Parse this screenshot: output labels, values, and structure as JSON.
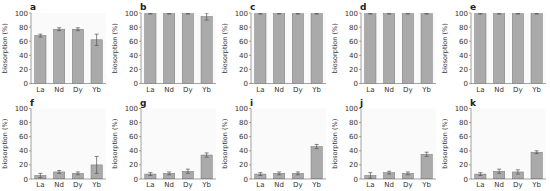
{
  "chart_data": [
    {
      "type": "bar",
      "title": "a",
      "ylabel": "biosorption (%)",
      "categories": [
        "La",
        "Nd",
        "Dy",
        "Yb"
      ],
      "values": [
        68,
        77,
        77,
        62
      ],
      "errors": [
        2,
        2,
        2,
        8
      ],
      "color": "#aaaaaa",
      "ylim": [
        0,
        100
      ],
      "yticks": [
        0,
        20,
        40,
        60,
        80,
        100
      ],
      "grid": false
    },
    {
      "type": "bar",
      "title": "b",
      "ylabel": "biosorption (%)",
      "categories": [
        "La",
        "Nd",
        "Dy",
        "Yb"
      ],
      "values": [
        99,
        99,
        99,
        95
      ],
      "errors": [
        0.5,
        0.5,
        0.5,
        5
      ],
      "color": "#aaaaaa",
      "ylim": [
        0,
        100
      ],
      "yticks": [
        0,
        20,
        40,
        60,
        80,
        100
      ],
      "grid": false
    },
    {
      "type": "bar",
      "title": "c",
      "ylabel": "biosorption (%)",
      "categories": [
        "La",
        "Nd",
        "Dy",
        "Yb"
      ],
      "values": [
        99,
        99,
        99,
        99
      ],
      "errors": [
        0.5,
        0.5,
        0.5,
        0.5
      ],
      "color": "#aaaaaa",
      "ylim": [
        0,
        100
      ],
      "yticks": [
        0,
        20,
        40,
        60,
        80,
        100
      ],
      "grid": false
    },
    {
      "type": "bar",
      "title": "d",
      "ylabel": "biosorption (%)",
      "categories": [
        "La",
        "Nd",
        "Dy",
        "Yb"
      ],
      "values": [
        99,
        99,
        99,
        99
      ],
      "errors": [
        0.5,
        0.5,
        0.5,
        0.5
      ],
      "color": "#aaaaaa",
      "ylim": [
        0,
        100
      ],
      "yticks": [
        0,
        20,
        40,
        60,
        80,
        100
      ],
      "grid": false
    },
    {
      "type": "bar",
      "title": "e",
      "ylabel": "biosorption (%)",
      "categories": [
        "La",
        "Nd",
        "Dy",
        "Yb"
      ],
      "values": [
        99,
        99,
        99,
        99
      ],
      "errors": [
        0.5,
        0.5,
        0.5,
        0.5
      ],
      "color": "#aaaaaa",
      "ylim": [
        0,
        100
      ],
      "yticks": [
        0,
        20,
        40,
        60,
        80,
        100
      ],
      "grid": false
    },
    {
      "type": "bar",
      "title": "f",
      "ylabel": "biosorption (%)",
      "categories": [
        "La",
        "Nd",
        "Dy",
        "Yb"
      ],
      "values": [
        5,
        10,
        8,
        20
      ],
      "errors": [
        3,
        2,
        2,
        12
      ],
      "color": "#aaaaaa",
      "ylim": [
        0,
        100
      ],
      "yticks": [
        0,
        20,
        40,
        60,
        80,
        100
      ],
      "grid": false
    },
    {
      "type": "bar",
      "title": "g",
      "ylabel": "biosorption (%)",
      "categories": [
        "La",
        "Nd",
        "Dy",
        "Yb"
      ],
      "values": [
        7,
        8,
        11,
        34
      ],
      "errors": [
        2,
        2,
        3,
        3
      ],
      "color": "#aaaaaa",
      "ylim": [
        0,
        100
      ],
      "yticks": [
        0,
        20,
        40,
        60,
        80,
        100
      ],
      "grid": false
    },
    {
      "type": "bar",
      "title": "i",
      "ylabel": "biosorption (%)",
      "categories": [
        "La",
        "Nd",
        "Dy",
        "Yb"
      ],
      "values": [
        7,
        8,
        8,
        46
      ],
      "errors": [
        2,
        2,
        2,
        3
      ],
      "color": "#aaaaaa",
      "ylim": [
        0,
        100
      ],
      "yticks": [
        0,
        20,
        40,
        60,
        80,
        100
      ],
      "grid": false
    },
    {
      "type": "bar",
      "title": "j",
      "ylabel": "biosorption (%)",
      "categories": [
        "La",
        "Nd",
        "Dy",
        "Yb"
      ],
      "values": [
        5,
        9,
        8,
        35
      ],
      "errors": [
        4,
        2,
        2,
        3
      ],
      "color": "#aaaaaa",
      "ylim": [
        0,
        100
      ],
      "yticks": [
        0,
        20,
        40,
        60,
        80,
        100
      ],
      "grid": false
    },
    {
      "type": "bar",
      "title": "k",
      "ylabel": "biosorption (%)",
      "categories": [
        "La",
        "Nd",
        "Dy",
        "Yb"
      ],
      "values": [
        7,
        11,
        10,
        38
      ],
      "errors": [
        2,
        3,
        3,
        2
      ],
      "color": "#aaaaaa",
      "ylim": [
        0,
        100
      ],
      "yticks": [
        0,
        20,
        40,
        60,
        80,
        100
      ],
      "grid": false
    }
  ]
}
